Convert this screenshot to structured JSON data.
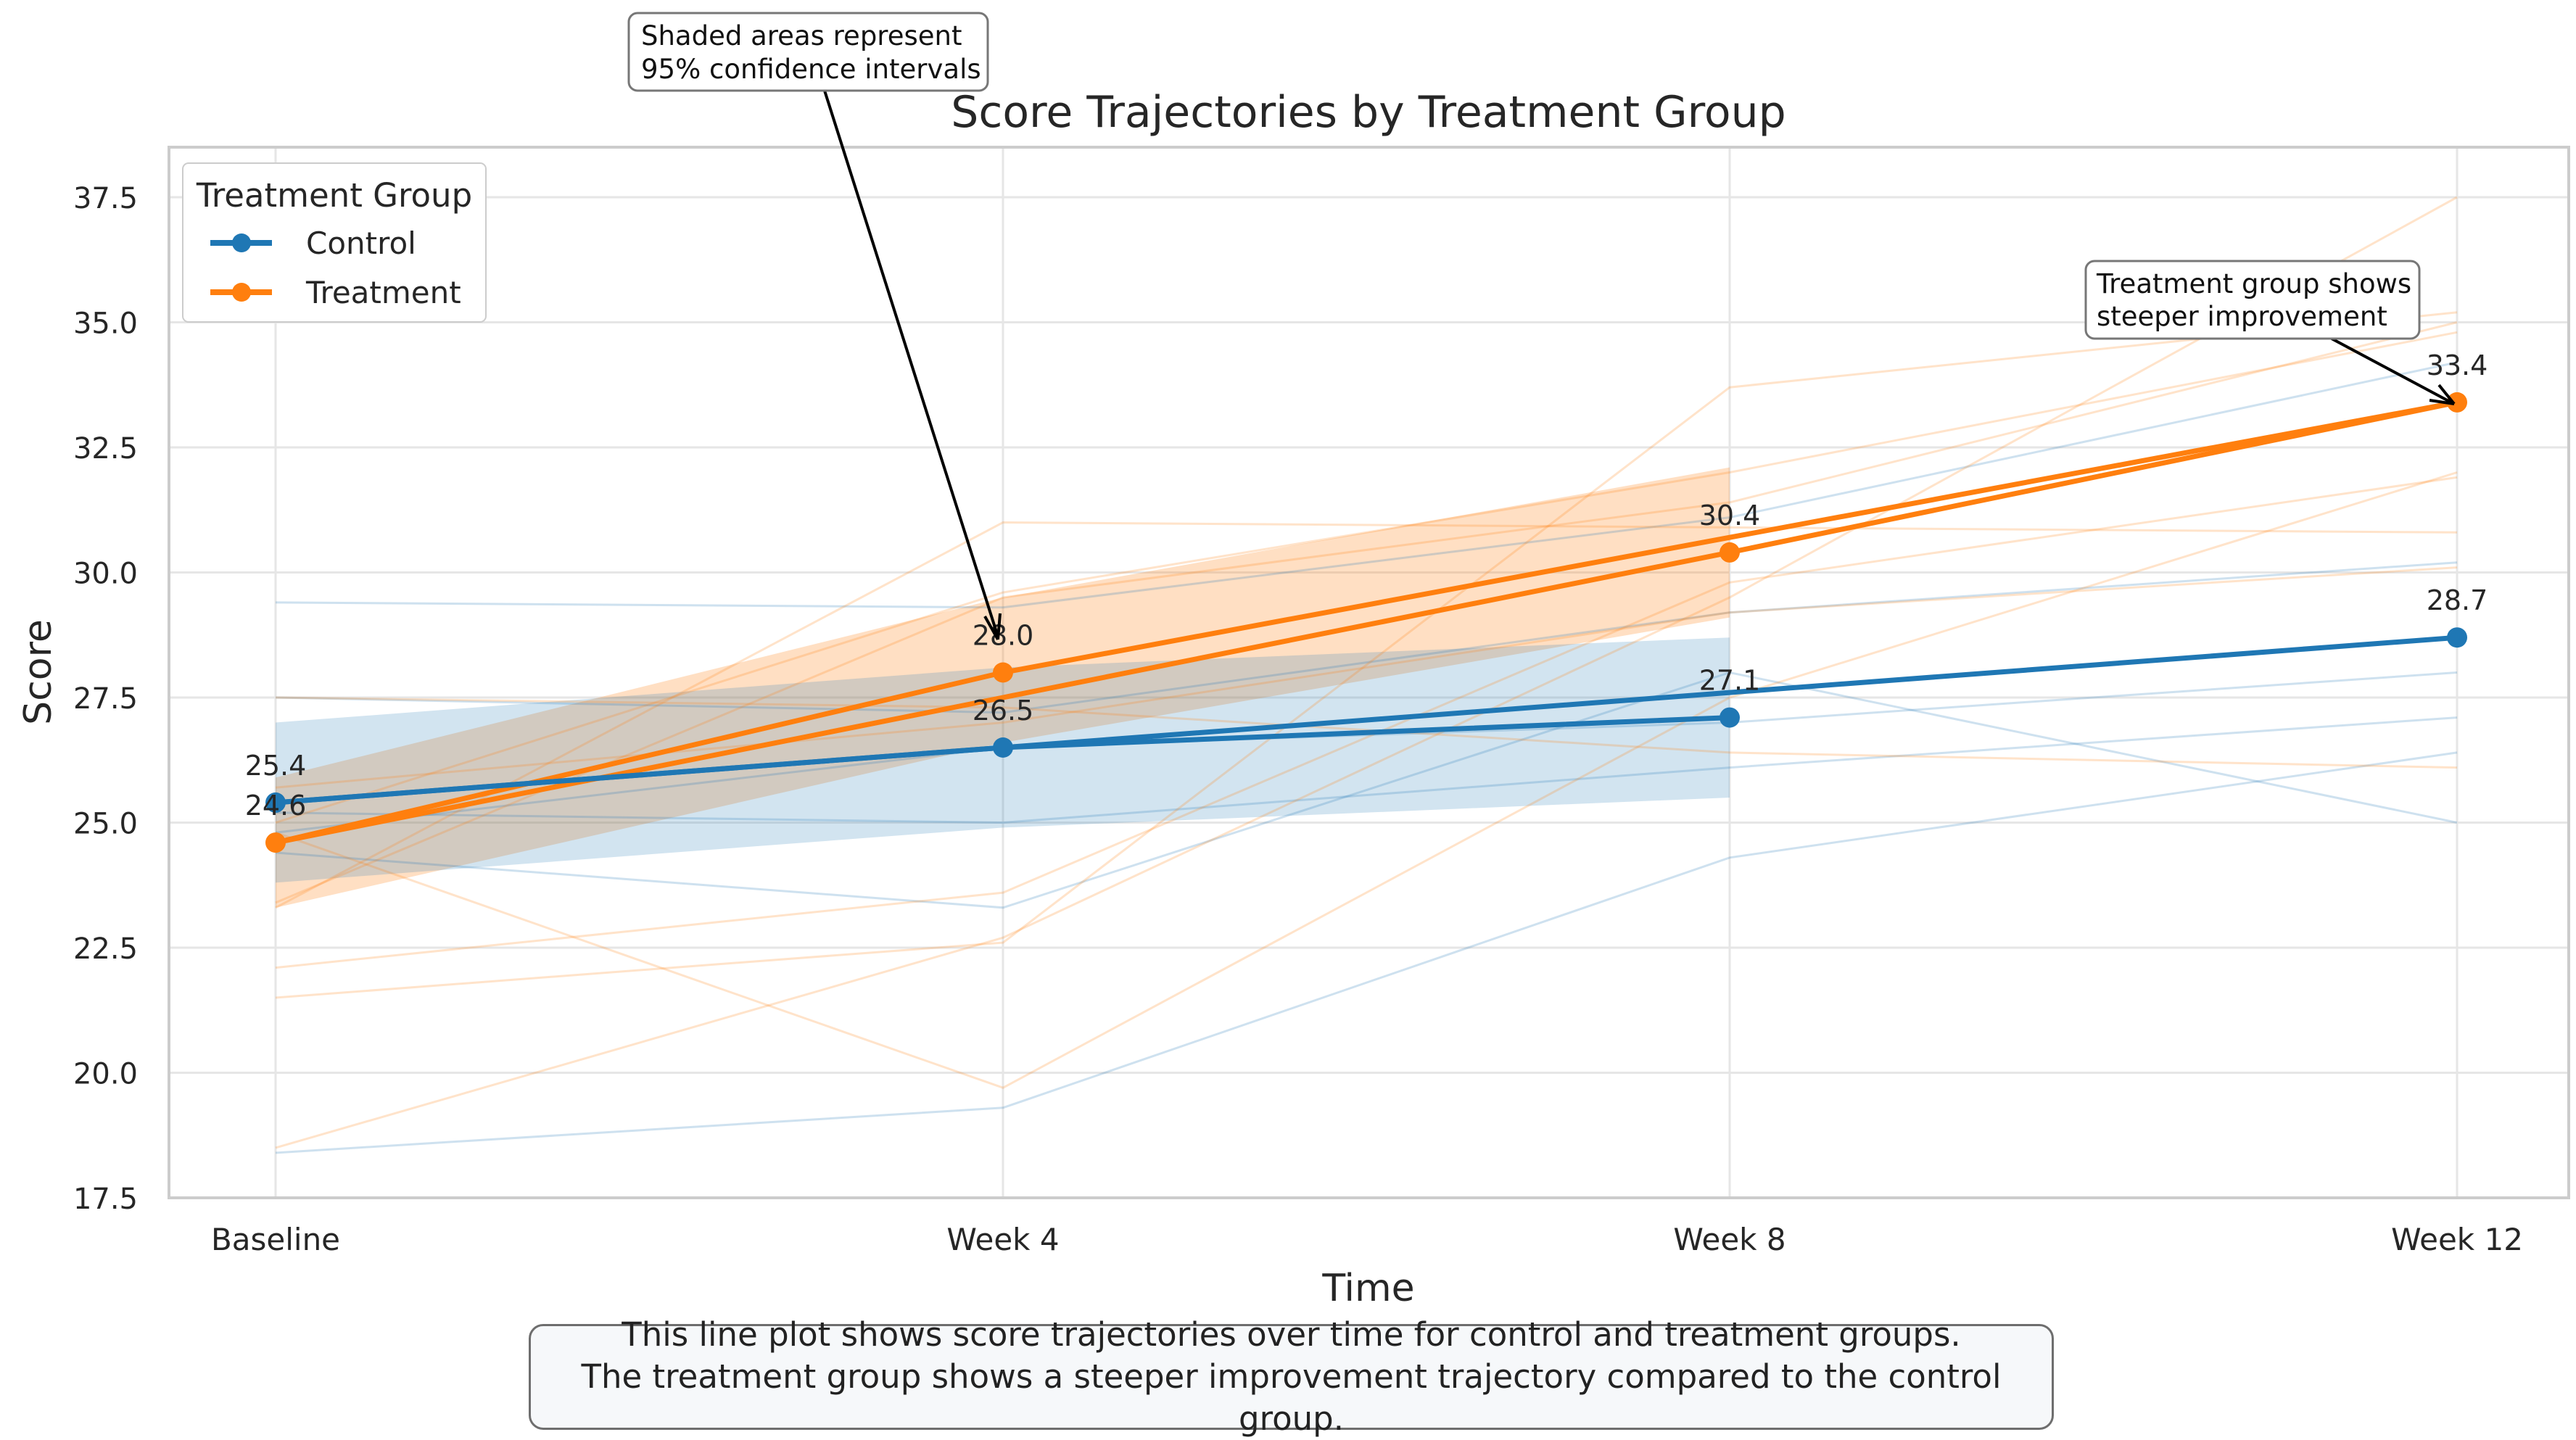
{
  "chart_data": {
    "type": "line",
    "title": "Score Trajectories by Treatment Group",
    "xlabel": "Time",
    "ylabel": "Score",
    "categories": [
      "Baseline",
      "Week 4",
      "Week 8",
      "Week 12"
    ],
    "ylim": [
      17.5,
      38.5
    ],
    "yticks": [
      17.5,
      20.0,
      22.5,
      25.0,
      27.5,
      30.0,
      32.5,
      35.0,
      37.5
    ],
    "grid": true,
    "legend": {
      "title": "Treatment Group",
      "placement": "top-left"
    },
    "series": [
      {
        "name": "Control",
        "color": "#1f77b4",
        "mean_lines": [
          [
            25.4,
            26.5,
            27.6,
            28.7
          ],
          [
            25.4,
            26.5,
            27.1
          ]
        ],
        "labeled_values": [
          25.4,
          26.5,
          27.1,
          28.7
        ],
        "ci_lower": [
          23.8,
          24.9,
          25.5
        ],
        "ci_upper": [
          27.0,
          28.1,
          28.7
        ],
        "individual": [
          [
            29.4,
            29.3,
            31.1,
            34.2
          ],
          [
            24.4,
            23.3,
            28.0,
            25.0
          ],
          [
            18.4,
            19.3,
            24.3,
            26.4
          ],
          [
            25.2,
            25.0,
            26.1,
            27.1
          ],
          [
            27.5,
            27.2,
            29.2,
            30.2
          ],
          [
            24.8,
            26.5,
            27.0,
            28.0
          ]
        ]
      },
      {
        "name": "Treatment",
        "color": "#ff7f0e",
        "mean_lines": [
          [
            24.6,
            28.0,
            30.7,
            33.4
          ],
          [
            24.6,
            27.5,
            30.4,
            33.4
          ]
        ],
        "labeled_values": [
          24.6,
          28.0,
          30.4,
          33.4
        ],
        "ci_lower": [
          23.3,
          26.6,
          29.1
        ],
        "ci_upper": [
          25.9,
          29.5,
          32.1
        ],
        "individual": [
          [
            23.3,
            31.0,
            30.9,
            30.8
          ],
          [
            22.1,
            23.6,
            29.8,
            31.9
          ],
          [
            21.5,
            22.6,
            33.7,
            35.2
          ],
          [
            18.5,
            22.7,
            29.5,
            37.5
          ],
          [
            24.8,
            19.7,
            27.5,
            32.0
          ],
          [
            27.5,
            27.3,
            26.4,
            26.1
          ],
          [
            25.0,
            29.6,
            32.0,
            34.8
          ],
          [
            23.4,
            29.5,
            31.4,
            35.0
          ],
          [
            25.7,
            27.0,
            29.2,
            30.1
          ]
        ]
      }
    ],
    "annotations": [
      {
        "text_lines": [
          "Shaded areas represent",
          "95% confidence intervals"
        ],
        "target": [
          "Week 4",
          28.0
        ]
      },
      {
        "text_lines": [
          "Treatment group shows",
          "steeper improvement"
        ],
        "target": [
          "Week 12",
          33.4
        ]
      }
    ]
  },
  "caption": {
    "line1": "This line plot shows score trajectories over time for control and treatment groups.",
    "line2": "The treatment group shows a steeper improvement trajectory compared to the control group."
  }
}
